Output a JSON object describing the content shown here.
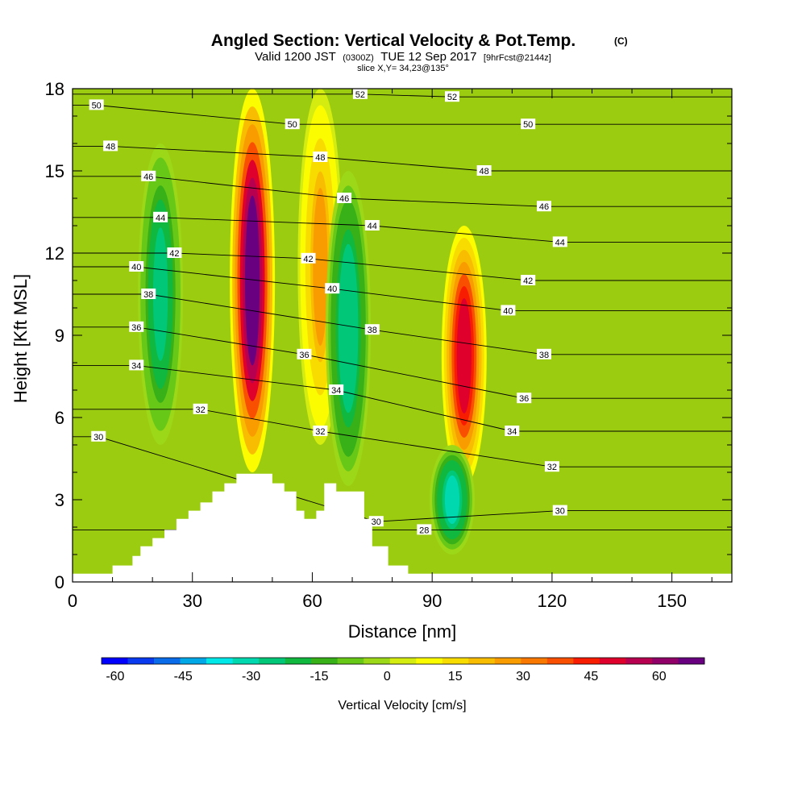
{
  "chart_data": {
    "type": "heatmap",
    "title": {
      "main": "Angled Section: Vertical Velocity & Pot.Temp.",
      "main_units": "(C)",
      "line2_valid": "Valid 1200 JST",
      "line2_utc": "(0300Z)",
      "line2_date": "TUE 12 Sep 2017",
      "line2_fcst": "[9hrFcst@2144z]",
      "line3": "slice X,Y= 34,23@135°"
    },
    "xlabel": "Distance [nm]",
    "ylabel": "Height [Kft MSL]",
    "xlim": [
      0,
      165
    ],
    "ylim": [
      0,
      18
    ],
    "x_ticks": [
      "0",
      "30",
      "60",
      "90",
      "120",
      "150"
    ],
    "y_ticks": [
      "0",
      "3",
      "6",
      "9",
      "12",
      "15",
      "18"
    ],
    "colorbar": {
      "label": "Vertical Velocity [cm/s]",
      "tick_labels": [
        "-60",
        "-45",
        "-30",
        "-15",
        "0",
        "15",
        "30",
        "45",
        "60"
      ],
      "range": [
        -63,
        70
      ],
      "colors": [
        "#0000ff",
        "#0a3af0",
        "#0a6ce8",
        "#00a8e8",
        "#00e8e8",
        "#00d8b0",
        "#00c878",
        "#10b840",
        "#38b018",
        "#68c818",
        "#9cd818",
        "#d4ec10",
        "#fcfc00",
        "#f8dc00",
        "#f8bc00",
        "#f89c00",
        "#f87800",
        "#f85000",
        "#f81c00",
        "#e0002c",
        "#b80050",
        "#900068",
        "#680080"
      ]
    },
    "vertical_velocity_features": [
      {
        "x": 45,
        "y0": 4.0,
        "y1": 18,
        "w_cm_s": 68,
        "kind": "updraft"
      },
      {
        "x": 62,
        "y0": 5.0,
        "y1": 18,
        "w_cm_s": 25,
        "kind": "updraft"
      },
      {
        "x": 98,
        "y0": 3.5,
        "y1": 13,
        "w_cm_s": 50,
        "kind": "updraft"
      },
      {
        "x": 22,
        "y0": 5.0,
        "y1": 16,
        "w_cm_s": -25,
        "kind": "downdraft"
      },
      {
        "x": 69,
        "y0": 3.5,
        "y1": 15,
        "w_cm_s": -28,
        "kind": "downdraft"
      },
      {
        "x": 95,
        "y0": 1.0,
        "y1": 5,
        "w_cm_s": -30,
        "kind": "downdraft"
      }
    ],
    "terrain_kft": {
      "x": [
        0,
        10,
        10,
        15,
        15,
        17,
        17,
        20,
        20,
        23,
        23,
        26,
        26,
        29,
        29,
        32,
        32,
        35,
        35,
        38,
        38,
        41,
        41,
        50,
        50,
        53,
        53,
        56,
        56,
        58,
        58,
        61,
        61,
        63,
        63,
        66,
        66,
        73,
        73,
        75,
        75,
        79,
        79,
        84,
        84,
        87,
        87,
        89,
        89,
        165
      ],
      "y": [
        0.3,
        0.3,
        0.6,
        0.6,
        0.95,
        0.95,
        1.3,
        1.3,
        1.6,
        1.6,
        1.9,
        1.9,
        2.3,
        2.3,
        2.6,
        2.6,
        2.9,
        2.9,
        3.3,
        3.3,
        3.6,
        3.6,
        3.95,
        3.95,
        3.6,
        3.6,
        3.3,
        3.3,
        2.6,
        2.6,
        2.3,
        2.3,
        2.6,
        2.6,
        3.6,
        3.6,
        3.3,
        3.3,
        2.3,
        2.3,
        1.3,
        1.3,
        0.6,
        0.6,
        0.3,
        0.3,
        0.3,
        0.3,
        0.3,
        0.3
      ]
    },
    "potential_temperature_contour_labels": [
      {
        "text": "50",
        "x": 6,
        "y": 17.4
      },
      {
        "text": "48",
        "x": 9.5,
        "y": 15.9
      },
      {
        "text": "46",
        "x": 19,
        "y": 14.8
      },
      {
        "text": "44",
        "x": 22,
        "y": 13.3
      },
      {
        "text": "42",
        "x": 25.5,
        "y": 12.0
      },
      {
        "text": "40",
        "x": 16,
        "y": 11.5
      },
      {
        "text": "38",
        "x": 19,
        "y": 10.5
      },
      {
        "text": "36",
        "x": 16,
        "y": 9.3
      },
      {
        "text": "34",
        "x": 16,
        "y": 7.9
      },
      {
        "text": "32",
        "x": 32,
        "y": 6.3
      },
      {
        "text": "30",
        "x": 6.5,
        "y": 5.3
      },
      {
        "text": "52",
        "x": 72,
        "y": 17.8
      },
      {
        "text": "52",
        "x": 95,
        "y": 17.7
      },
      {
        "text": "50",
        "x": 55,
        "y": 16.7
      },
      {
        "text": "48",
        "x": 62,
        "y": 15.5
      },
      {
        "text": "46",
        "x": 68,
        "y": 14.0
      },
      {
        "text": "44",
        "x": 75,
        "y": 13.0
      },
      {
        "text": "42",
        "x": 59,
        "y": 11.8
      },
      {
        "text": "40",
        "x": 65,
        "y": 10.7
      },
      {
        "text": "38",
        "x": 75,
        "y": 9.2
      },
      {
        "text": "36",
        "x": 58,
        "y": 8.3
      },
      {
        "text": "34",
        "x": 66,
        "y": 7.0
      },
      {
        "text": "32",
        "x": 62,
        "y": 5.5
      },
      {
        "text": "30",
        "x": 76,
        "y": 2.2
      },
      {
        "text": "28",
        "x": 88,
        "y": 1.9
      },
      {
        "text": "50",
        "x": 114,
        "y": 16.7
      },
      {
        "text": "48",
        "x": 103,
        "y": 15.0
      },
      {
        "text": "46",
        "x": 118,
        "y": 13.7
      },
      {
        "text": "44",
        "x": 122,
        "y": 12.4
      },
      {
        "text": "42",
        "x": 114,
        "y": 11.0
      },
      {
        "text": "40",
        "x": 109,
        "y": 9.9
      },
      {
        "text": "38",
        "x": 118,
        "y": 8.3
      },
      {
        "text": "36",
        "x": 113,
        "y": 6.7
      },
      {
        "text": "34",
        "x": 110,
        "y": 5.5
      },
      {
        "text": "32",
        "x": 120,
        "y": 4.2
      },
      {
        "text": "30",
        "x": 122,
        "y": 2.6
      }
    ]
  }
}
